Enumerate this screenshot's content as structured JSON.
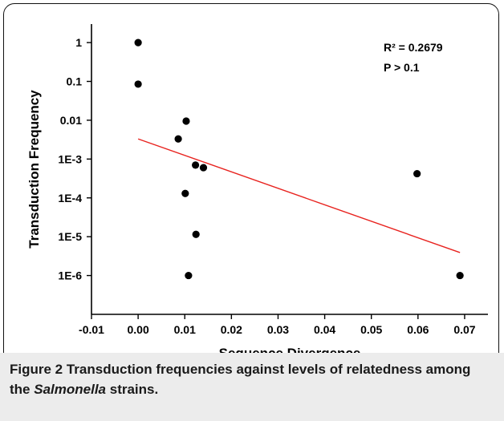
{
  "chart_data": {
    "type": "scatter",
    "xlabel": "Sequence Divergence",
    "ylabel": "Transduction Frequency",
    "xlim": [
      -0.01,
      0.075
    ],
    "x_ticks": [
      -0.01,
      0.0,
      0.01,
      0.02,
      0.03,
      0.04,
      0.05,
      0.06,
      0.07
    ],
    "x_tick_labels": [
      "-0.01",
      "0.00",
      "0.01",
      "0.02",
      "0.03",
      "0.04",
      "0.05",
      "0.06",
      "0.07"
    ],
    "y_scale": "log",
    "ylim": [
      1e-07,
      3
    ],
    "y_ticks": [
      1e-06,
      1e-05,
      0.0001,
      0.001,
      0.01,
      0.1,
      1
    ],
    "y_tick_labels": [
      "1E-6",
      "1E-5",
      "1E-4",
      "1E-3",
      "0.01",
      "0.1",
      "1"
    ],
    "points": [
      {
        "x": 0.0,
        "y": 1.0
      },
      {
        "x": 0.0,
        "y": 0.085
      },
      {
        "x": 0.0103,
        "y": 0.0095
      },
      {
        "x": 0.0086,
        "y": 0.0033
      },
      {
        "x": 0.0123,
        "y": 0.0007
      },
      {
        "x": 0.014,
        "y": 0.0006
      },
      {
        "x": 0.0101,
        "y": 0.00013
      },
      {
        "x": 0.0124,
        "y": 1.15e-05
      },
      {
        "x": 0.0108,
        "y": 1e-06
      },
      {
        "x": 0.0598,
        "y": 0.00042
      },
      {
        "x": 0.069,
        "y": 1e-06
      }
    ],
    "trendline": {
      "x": [
        0.0,
        0.069
      ],
      "y": [
        0.0033,
        3.9e-06
      ],
      "color": "#e8231f"
    },
    "annotations": {
      "r_squared": "R² = 0.2679",
      "p_value": "P > 0.1"
    },
    "marker_color": "#000000",
    "grid": false
  },
  "caption": {
    "label": "Figure 2",
    "text_before": "Transduction frequencies against levels of relatedness among the",
    "italic": "Salmonella",
    "text_after": "strains."
  }
}
